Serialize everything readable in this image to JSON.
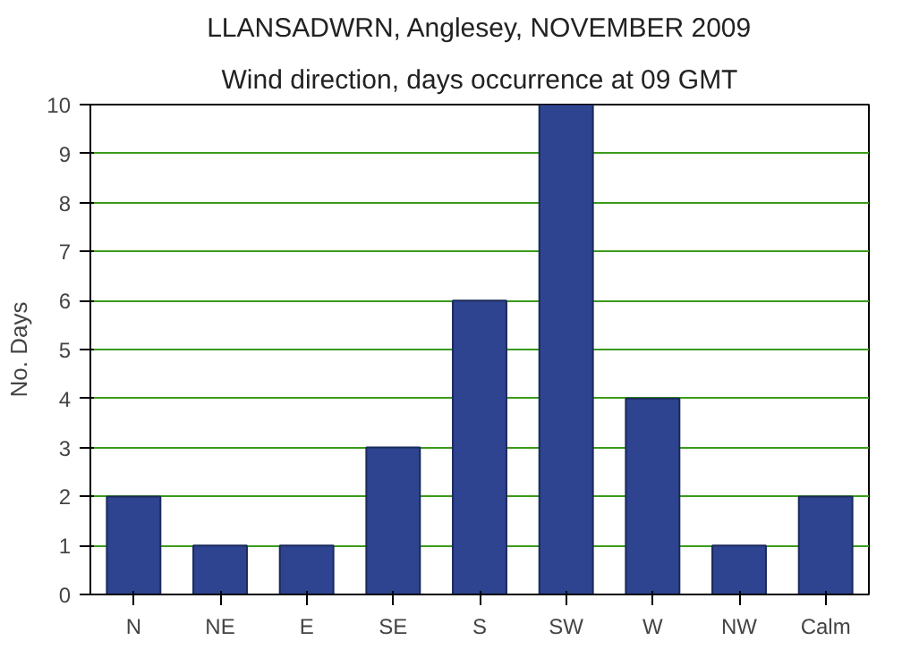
{
  "chart_data": {
    "type": "bar",
    "title": "LLANSADWRN, Anglesey, NOVEMBER 2009",
    "subtitle": "Wind direction, days occurrence at 09 GMT",
    "ylabel": "No. Days",
    "categories": [
      "N",
      "NE",
      "E",
      "SE",
      "S",
      "SW",
      "W",
      "NW",
      "Calm"
    ],
    "values": [
      2,
      1,
      1,
      3,
      6,
      10,
      4,
      1,
      2
    ],
    "color": "#2e4490",
    "ylim": [
      0,
      10
    ],
    "yticks": [
      0,
      1,
      2,
      3,
      4,
      5,
      6,
      7,
      8,
      9,
      10
    ],
    "grid": "y"
  }
}
